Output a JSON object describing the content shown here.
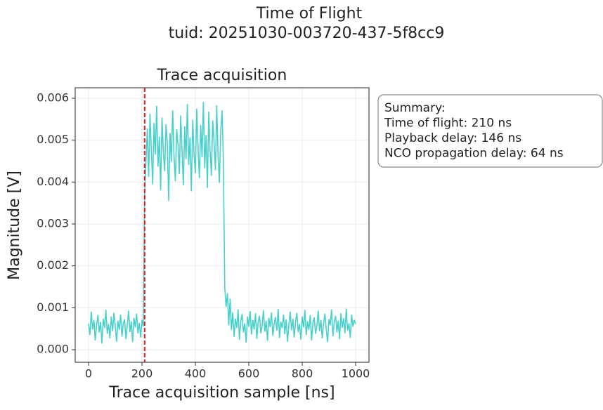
{
  "chart_data": {
    "type": "line",
    "title": "Time of Flight",
    "subtitle": "tuid: 20251030-003720-437-5f8cc9",
    "axes_title": "Trace acquisition",
    "xlabel": "Trace acquisition sample [ns]",
    "ylabel": "Magnitude [V]",
    "annotation": [
      "Summary:",
      "Time of flight: 210 ns",
      "Playback delay: 146 ns",
      "NCO propagation delay: 64 ns"
    ],
    "vline": 210,
    "vline_color": "#e41a1c",
    "grid": true,
    "xlim": [
      -50,
      1050
    ],
    "xticks": [
      0,
      200,
      400,
      600,
      800,
      1000
    ],
    "ylim": [
      -0.0003,
      0.00625
    ],
    "yticks": [
      {
        "value": 0,
        "label": "0.000"
      },
      {
        "value": 0.001,
        "label": "0.001"
      },
      {
        "value": 0.002,
        "label": "0.002"
      },
      {
        "value": 0.003,
        "label": "0.003"
      },
      {
        "value": 0.004,
        "label": "0.004"
      },
      {
        "value": 0.005,
        "label": "0.005"
      },
      {
        "value": 0.006,
        "label": "0.006"
      }
    ],
    "x": [
      0,
      5,
      10,
      15,
      20,
      25,
      30,
      35,
      40,
      45,
      50,
      55,
      60,
      65,
      70,
      75,
      80,
      85,
      90,
      95,
      100,
      105,
      110,
      115,
      120,
      125,
      130,
      135,
      140,
      145,
      150,
      155,
      160,
      165,
      170,
      175,
      180,
      185,
      190,
      195,
      200,
      205,
      210,
      215,
      220,
      225,
      230,
      235,
      240,
      245,
      250,
      255,
      260,
      265,
      270,
      275,
      280,
      285,
      290,
      295,
      300,
      305,
      310,
      315,
      320,
      325,
      330,
      335,
      340,
      345,
      350,
      355,
      360,
      365,
      370,
      375,
      380,
      385,
      390,
      395,
      400,
      405,
      410,
      415,
      420,
      425,
      430,
      435,
      440,
      445,
      450,
      455,
      460,
      465,
      470,
      475,
      480,
      485,
      490,
      495,
      500,
      505,
      510,
      515,
      520,
      525,
      530,
      535,
      540,
      545,
      550,
      555,
      560,
      565,
      570,
      575,
      580,
      585,
      590,
      595,
      600,
      605,
      610,
      615,
      620,
      625,
      630,
      635,
      640,
      645,
      650,
      655,
      660,
      665,
      670,
      675,
      680,
      685,
      690,
      695,
      700,
      705,
      710,
      715,
      720,
      725,
      730,
      735,
      740,
      745,
      750,
      755,
      760,
      765,
      770,
      775,
      780,
      785,
      790,
      795,
      800,
      805,
      810,
      815,
      820,
      825,
      830,
      835,
      840,
      845,
      850,
      855,
      860,
      865,
      870,
      875,
      880,
      885,
      890,
      895,
      900,
      905,
      910,
      915,
      920,
      925,
      930,
      935,
      940,
      945,
      950,
      955,
      960,
      965,
      970,
      975,
      980,
      985,
      990,
      995,
      1000
    ],
    "series": [
      {
        "color": "#48d1cc",
        "values": [
          0.00062,
          0.00035,
          0.00091,
          0.00048,
          0.00071,
          0.00022,
          0.00058,
          0.00083,
          0.00041,
          0.00066,
          0.00015,
          0.00074,
          0.00052,
          0.00095,
          0.00038,
          0.00061,
          0.00027,
          0.00079,
          0.00044,
          0.00088,
          0.00056,
          0.00019,
          0.00069,
          0.00047,
          0.00084,
          0.00031,
          0.00063,
          0.00072,
          0.00025,
          0.00058,
          0.00093,
          0.00042,
          0.00067,
          0.00018,
          0.00076,
          0.00053,
          0.00086,
          0.00039,
          0.00064,
          0.00029,
          0.00071,
          0.00055,
          0.00372,
          0.00451,
          0.00528,
          0.00412,
          0.00563,
          0.00478,
          0.00395,
          0.00541,
          0.00466,
          0.00582,
          0.00437,
          0.00509,
          0.00381,
          0.00554,
          0.00472,
          0.00426,
          0.00538,
          0.00491,
          0.00355,
          0.00517,
          0.00448,
          0.00571,
          0.00463,
          0.00402,
          0.00526,
          0.00487,
          0.00419,
          0.00559,
          0.00474,
          0.00392,
          0.00533,
          0.00455,
          0.00586,
          0.00441,
          0.00507,
          0.00378,
          0.00549,
          0.00468,
          0.00421,
          0.00575,
          0.00482,
          0.00409,
          0.00536,
          0.00459,
          0.00591,
          0.00433,
          0.00512,
          0.00386,
          0.00568,
          0.00476,
          0.00415,
          0.00547,
          0.00494,
          0.00428,
          0.00583,
          0.00461,
          0.00398,
          0.00522,
          0.00571,
          0.00445,
          0.00148,
          0.00102,
          0.00135,
          0.00058,
          0.00122,
          0.00047,
          0.00089,
          0.00031,
          0.00074,
          0.00052,
          0.00096,
          0.00023,
          0.00068,
          0.00085,
          0.00041,
          0.00063,
          0.00017,
          0.00079,
          0.00055,
          0.00092,
          0.00036,
          0.00071,
          0.00048,
          0.00087,
          0.00026,
          0.00065,
          0.00081,
          0.00039,
          0.00058,
          0.00094,
          0.00043,
          0.00069,
          0.00021,
          0.00076,
          0.00054,
          0.00089,
          0.00033,
          0.00062,
          0.00078,
          0.00045,
          0.00097,
          0.00028,
          0.00067,
          0.00051,
          0.00084,
          0.00037,
          0.00072,
          0.00019,
          0.00059,
          0.00091,
          0.00046,
          0.00074,
          0.00029,
          0.00066,
          0.00088,
          0.00042,
          0.00061,
          0.00024,
          0.00079,
          0.00053,
          0.00095,
          0.00035,
          0.00068,
          0.00047,
          0.00083,
          0.00022,
          0.00064,
          0.00077,
          0.00038,
          0.00056,
          0.00093,
          0.00044,
          0.00071,
          0.00027,
          0.00062,
          0.00086,
          0.00049,
          0.00018,
          0.00073,
          0.00058,
          0.00096,
          0.00032,
          0.00066,
          0.00081,
          0.00041,
          0.00069,
          0.00025,
          0.00087,
          0.00052,
          0.00075,
          0.00039,
          0.00098,
          0.00046,
          0.00063,
          0.00028,
          0.00084,
          0.00055,
          0.00071,
          0.00061
        ]
      }
    ]
  }
}
